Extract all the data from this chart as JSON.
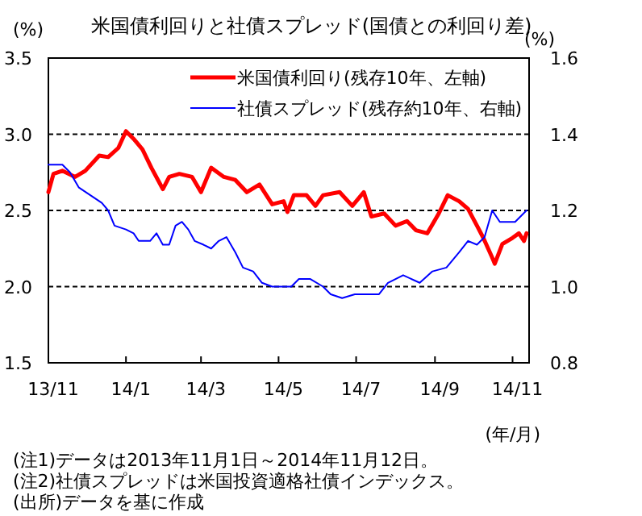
{
  "chart_data": {
    "type": "line",
    "title": "米国債利回りと社債スプレッド(国債との利回り差)",
    "ylabel": "(%)",
    "y2label": "(%)",
    "xlabel": "(年/月)",
    "annotations": [
      "(注1)データは2013年11月1日～2014年11月12日。",
      "(注2)社債スプレッドは米国投資適格社債インデックス。",
      "(出所)データを基に作成"
    ],
    "xlim": [
      "2013-11-01",
      "2014-11-14"
    ],
    "xticks": [
      {
        "value": "2013-11-01",
        "label": "13/11"
      },
      {
        "value": "2014-01-01",
        "label": "14/1"
      },
      {
        "value": "2014-03-01",
        "label": "14/3"
      },
      {
        "value": "2014-05-01",
        "label": "14/5"
      },
      {
        "value": "2014-07-01",
        "label": "14/7"
      },
      {
        "value": "2014-09-01",
        "label": "14/9"
      },
      {
        "value": "2014-11-01",
        "label": "14/11"
      }
    ],
    "ylim": [
      1.5,
      3.5
    ],
    "yticks": [
      {
        "value": 1.5,
        "label": "1.5"
      },
      {
        "value": 2,
        "label": "2.0"
      },
      {
        "value": 2.5,
        "label": "2.5"
      },
      {
        "value": 3,
        "label": "3.0"
      },
      {
        "value": 3.5,
        "label": "3.5"
      }
    ],
    "y2lim": [
      0.8,
      1.6
    ],
    "y2ticks": [
      {
        "value": 0.8,
        "label": "0.8"
      },
      {
        "value": 1,
        "label": "1.0"
      },
      {
        "value": 1.2,
        "label": "1.2"
      },
      {
        "value": 1.4,
        "label": "1.4"
      },
      {
        "value": 1.6,
        "label": "1.6"
      }
    ],
    "grid": "y",
    "legend": "top right",
    "line_style": "solid",
    "series": [
      {
        "name": "米国債利回り(残存10年、左軸)",
        "color": "#ff0000",
        "x": [
          "2013-11-01",
          "2013-11-05",
          "2013-11-12",
          "2013-11-22",
          "2013-11-30",
          "2013-12-11",
          "2013-12-18",
          "2013-12-26",
          "2014-01-01",
          "2014-01-07",
          "2014-01-14",
          "2014-01-21",
          "2014-01-30",
          "2014-02-04",
          "2014-02-12",
          "2014-02-22",
          "2014-03-01",
          "2014-03-09",
          "2014-03-19",
          "2014-03-28",
          "2014-04-06",
          "2014-04-16",
          "2014-04-26",
          "2014-05-05",
          "2014-05-08",
          "2014-05-13",
          "2014-05-23",
          "2014-05-30",
          "2014-06-05",
          "2014-06-18",
          "2014-06-28",
          "2014-07-07",
          "2014-07-13",
          "2014-07-23",
          "2014-08-01",
          "2014-08-10",
          "2014-08-17",
          "2014-08-26",
          "2014-09-04",
          "2014-09-11",
          "2014-09-20",
          "2014-09-27",
          "2014-10-04",
          "2014-10-09",
          "2014-10-16",
          "2014-10-18",
          "2014-10-24",
          "2014-11-01",
          "2014-11-06",
          "2014-11-10",
          "2014-11-12"
        ],
        "values": [
          2.62,
          2.74,
          2.76,
          2.72,
          2.76,
          2.86,
          2.85,
          2.91,
          3.02,
          2.97,
          2.9,
          2.78,
          2.64,
          2.72,
          2.74,
          2.72,
          2.62,
          2.78,
          2.72,
          2.7,
          2.62,
          2.67,
          2.54,
          2.56,
          2.49,
          2.6,
          2.6,
          2.53,
          2.6,
          2.62,
          2.53,
          2.62,
          2.46,
          2.48,
          2.4,
          2.43,
          2.37,
          2.35,
          2.48,
          2.6,
          2.56,
          2.51,
          2.4,
          2.32,
          2.19,
          2.15,
          2.28,
          2.32,
          2.35,
          2.3,
          2.35
        ]
      },
      {
        "name": "社債スプレッド(残存約10年、右軸)",
        "color": "#0000ff",
        "axis": "y2",
        "x": [
          "2013-11-01",
          "2013-11-12",
          "2013-11-18",
          "2013-11-25",
          "2013-12-04",
          "2013-12-13",
          "2013-12-18",
          "2013-12-23",
          "2014-01-01",
          "2014-01-07",
          "2014-01-11",
          "2014-01-20",
          "2014-01-25",
          "2014-01-30",
          "2014-02-04",
          "2014-02-09",
          "2014-02-14",
          "2014-02-19",
          "2014-02-24",
          "2014-03-03",
          "2014-03-09",
          "2014-03-15",
          "2014-03-21",
          "2014-03-28",
          "2014-04-03",
          "2014-04-11",
          "2014-04-18",
          "2014-04-26",
          "2014-05-05",
          "2014-05-11",
          "2014-05-17",
          "2014-05-26",
          "2014-06-05",
          "2014-06-11",
          "2014-06-20",
          "2014-06-30",
          "2014-07-10",
          "2014-07-19",
          "2014-07-26",
          "2014-08-07",
          "2014-08-20",
          "2014-08-30",
          "2014-09-10",
          "2014-09-20",
          "2014-09-27",
          "2014-10-04",
          "2014-10-10",
          "2014-10-16",
          "2014-10-22",
          "2014-11-03",
          "2014-11-06",
          "2014-11-12"
        ],
        "values": [
          1.32,
          1.32,
          1.3,
          1.26,
          1.24,
          1.22,
          1.2,
          1.16,
          1.15,
          1.14,
          1.12,
          1.12,
          1.14,
          1.11,
          1.11,
          1.16,
          1.17,
          1.15,
          1.12,
          1.11,
          1.1,
          1.12,
          1.13,
          1.09,
          1.05,
          1.04,
          1.01,
          1.0,
          1.0,
          1.0,
          1.02,
          1.02,
          1.0,
          0.98,
          0.97,
          0.98,
          0.98,
          0.98,
          1.01,
          1.03,
          1.01,
          1.04,
          1.05,
          1.09,
          1.12,
          1.11,
          1.13,
          1.2,
          1.17,
          1.17,
          1.18,
          1.2
        ]
      }
    ]
  }
}
